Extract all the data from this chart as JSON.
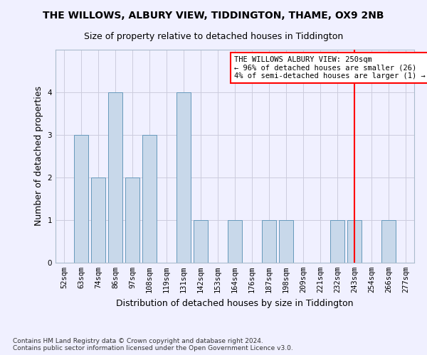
{
  "title": "THE WILLOWS, ALBURY VIEW, TIDDINGTON, THAME, OX9 2NB",
  "subtitle": "Size of property relative to detached houses in Tiddington",
  "xlabel": "Distribution of detached houses by size in Tiddington",
  "ylabel": "Number of detached properties",
  "categories": [
    "52sqm",
    "63sqm",
    "74sqm",
    "86sqm",
    "97sqm",
    "108sqm",
    "119sqm",
    "131sqm",
    "142sqm",
    "153sqm",
    "164sqm",
    "176sqm",
    "187sqm",
    "198sqm",
    "209sqm",
    "221sqm",
    "232sqm",
    "243sqm",
    "254sqm",
    "266sqm",
    "277sqm"
  ],
  "values": [
    0,
    3,
    2,
    4,
    2,
    3,
    0,
    4,
    1,
    0,
    1,
    0,
    1,
    1,
    0,
    0,
    1,
    1,
    0,
    1,
    0
  ],
  "bar_color": "#c8d8ea",
  "bar_edgecolor": "#6699bb",
  "vline_x_index": 17,
  "vline_color": "red",
  "annotation_text": "THE WILLOWS ALBURY VIEW: 250sqm\n← 96% of detached houses are smaller (26)\n4% of semi-detached houses are larger (1) →",
  "annotation_box_color": "white",
  "annotation_box_edgecolor": "red",
  "ylim": [
    0,
    5
  ],
  "yticks": [
    0,
    1,
    2,
    3,
    4
  ],
  "footer_text": "Contains HM Land Registry data © Crown copyright and database right 2024.\nContains public sector information licensed under the Open Government Licence v3.0.",
  "background_color": "#f0f0ff",
  "grid_color": "#ccccdd",
  "title_fontsize": 10,
  "subtitle_fontsize": 9,
  "ylabel_fontsize": 9,
  "xlabel_fontsize": 9,
  "tick_fontsize": 7.5,
  "footer_fontsize": 6.5,
  "annotation_fontsize": 7.5
}
